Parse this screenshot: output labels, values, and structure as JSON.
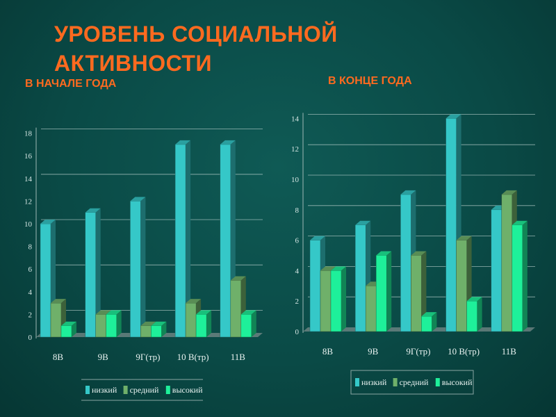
{
  "title": "УРОВЕНЬ СОЦИАЛЬНОЙ АКТИВНОСТИ",
  "title_line1": "УРОВЕНЬ СОЦИАЛЬНОЙ",
  "title_line2": "АКТИВНОСТИ",
  "colors": {
    "низкий": "#35c8c8",
    "средний": "#6fb06a",
    "высокий": "#1ef09a",
    "title": "#ff6a1f"
  },
  "chart_data": [
    {
      "type": "bar",
      "title": "В НАЧАЛЕ ГОДА",
      "categories": [
        "8В",
        "9В",
        "9Г(тр)",
        "10 В(тр)",
        "11В"
      ],
      "series": [
        {
          "name": "низкий",
          "values": [
            10,
            11,
            12,
            17,
            17
          ]
        },
        {
          "name": "средний",
          "values": [
            3,
            2,
            1,
            3,
            5
          ]
        },
        {
          "name": "высокий",
          "values": [
            1,
            2,
            1,
            2,
            2
          ]
        }
      ],
      "ylim": [
        0,
        18
      ],
      "yticks": [
        0,
        2,
        4,
        6,
        8,
        10,
        12,
        14,
        16,
        18
      ],
      "grid": true,
      "legend": "bottom"
    },
    {
      "type": "bar",
      "title": "В КОНЦЕ ГОДА",
      "categories": [
        "8В",
        "9В",
        "9Г(тр)",
        "10 В(тр)",
        "11В"
      ],
      "series": [
        {
          "name": "низкий",
          "values": [
            6,
            7,
            9,
            14,
            8
          ]
        },
        {
          "name": "средний",
          "values": [
            4,
            3,
            5,
            6,
            9
          ]
        },
        {
          "name": "высокий",
          "values": [
            4,
            5,
            1,
            2,
            7
          ]
        }
      ],
      "ylim": [
        0,
        14
      ],
      "yticks": [
        0,
        2,
        4,
        6,
        8,
        10,
        12,
        14
      ],
      "grid": true,
      "legend": "bottom"
    }
  ]
}
